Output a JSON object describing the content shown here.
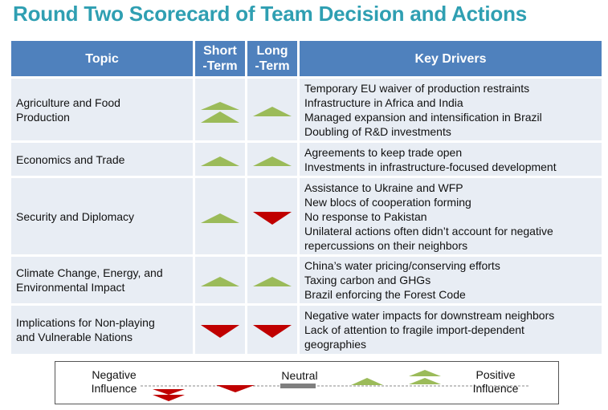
{
  "title": "Round Two Scorecard of Team Decision and Actions",
  "header": {
    "topic": "Topic",
    "short_term": [
      "Short",
      "-Term"
    ],
    "long_term": [
      "Long",
      "-Term"
    ],
    "key_drivers": "Key Drivers"
  },
  "rows": [
    {
      "topic": [
        "Agriculture and Food",
        "Production"
      ],
      "short_term": "strong-positive",
      "long_term": "positive",
      "drivers": [
        "Temporary EU waiver of production restraints",
        "Infrastructure in Africa and India",
        "Managed expansion and intensification in Brazil",
        "Doubling of R&D investments"
      ]
    },
    {
      "topic": [
        "Economics and Trade"
      ],
      "short_term": "positive",
      "long_term": "positive",
      "drivers": [
        "Agreements to keep trade open",
        "Investments in infrastructure-focused development"
      ]
    },
    {
      "topic": [
        "Security and Diplomacy"
      ],
      "short_term": "positive",
      "long_term": "negative",
      "drivers": [
        "Assistance to Ukraine and WFP",
        "New blocs of cooperation forming",
        "No response to Pakistan",
        "Unilateral actions often didn’t account for negative",
        "repercussions on their neighbors"
      ]
    },
    {
      "topic": [
        "Climate Change, Energy, and",
        "Environmental Impact"
      ],
      "short_term": "positive",
      "long_term": "positive",
      "drivers": [
        "China’s water pricing/conserving efforts",
        "Taxing carbon and GHGs",
        "Brazil enforcing the Forest Code"
      ]
    },
    {
      "topic": [
        "Implications for Non-playing",
        "and Vulnerable Nations"
      ],
      "short_term": "negative",
      "long_term": "negative",
      "drivers": [
        "Negative water impacts for downstream neighbors",
        "Lack of attention to fragile import-dependent",
        "geographies"
      ]
    }
  ],
  "legend": {
    "negative": [
      "Negative",
      "Influence"
    ],
    "neutral": "Neutral",
    "positive": [
      "Positive",
      "Influence"
    ]
  },
  "colors": {
    "title": "#2f9fb2",
    "header": "#4f81bd",
    "cell": "#e8edf4",
    "positive": "#9bbb59",
    "negative": "#c00000",
    "neutral": "#7f7f7f"
  }
}
